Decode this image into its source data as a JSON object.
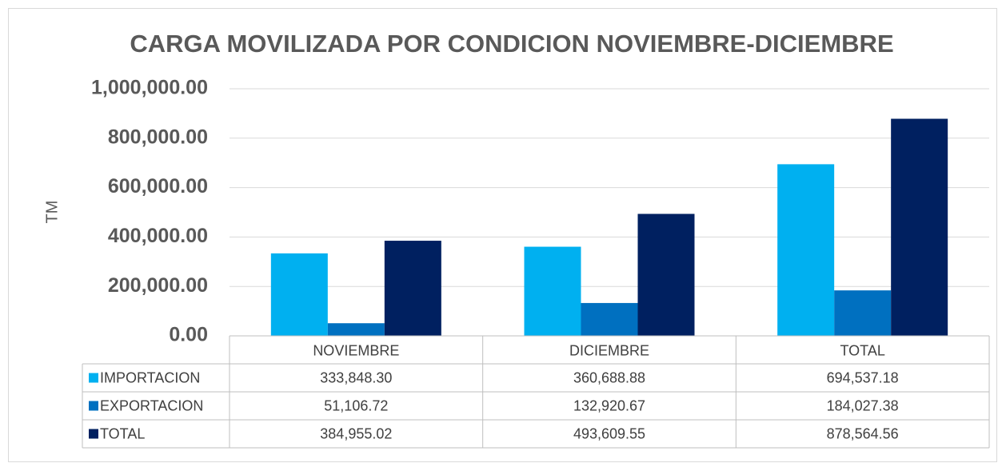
{
  "chart_data": {
    "type": "bar",
    "title": "CARGA MOVILIZADA POR CONDICION NOVIEMBRE-DICIEMBRE",
    "y_label": "TM",
    "categories": [
      "NOVIEMBRE",
      "DICIEMBRE",
      "TOTAL"
    ],
    "series": [
      {
        "name": "IMPORTACION",
        "color": "#00b0f0",
        "values": [
          333848.3,
          360688.88,
          694537.18
        ],
        "value_labels": [
          "333,848.30",
          "360,688.88",
          "694,537.18"
        ]
      },
      {
        "name": "EXPORTACION",
        "color": "#0070c0",
        "values": [
          51106.72,
          132920.67,
          184027.38
        ],
        "value_labels": [
          "51,106.72",
          "132,920.67",
          "184,027.38"
        ]
      },
      {
        "name": "TOTAL",
        "color": "#002060",
        "values": [
          384955.02,
          493609.55,
          878564.56
        ],
        "value_labels": [
          "384,955.02",
          "493,609.55",
          "878,564.56"
        ]
      }
    ],
    "ylim": [
      0,
      1000000
    ],
    "yticks": [
      {
        "value": 0,
        "label": "0.00"
      },
      {
        "value": 200000,
        "label": "200,000.00"
      },
      {
        "value": 400000,
        "label": "400,000.00"
      },
      {
        "value": 600000,
        "label": "600,000.00"
      },
      {
        "value": 800000,
        "label": "800,000.00"
      },
      {
        "value": 1000000,
        "label": "1,000,000.00"
      }
    ],
    "grid": true
  }
}
